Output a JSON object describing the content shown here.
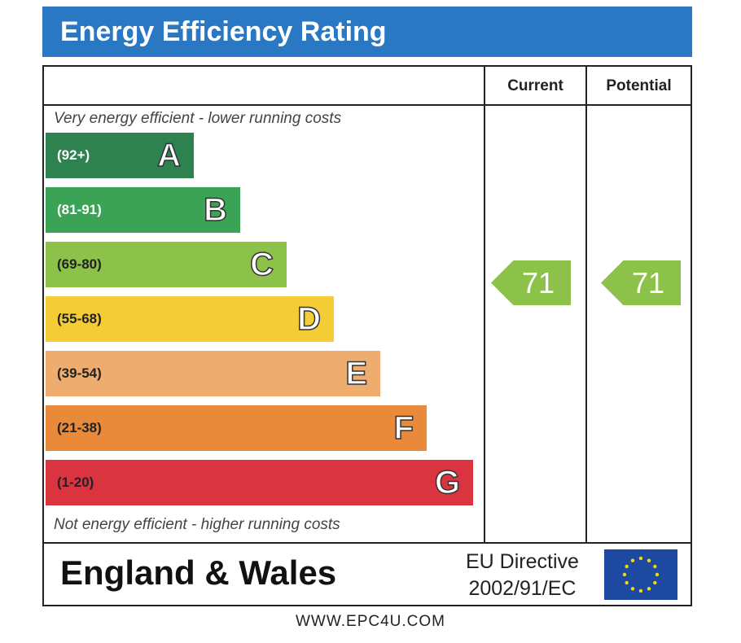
{
  "title": "Energy Efficiency Rating",
  "columns": {
    "current": "Current",
    "potential": "Potential"
  },
  "notes": {
    "top": "Very energy efficient - lower running costs",
    "bottom": "Not energy efficient - higher running costs"
  },
  "footer": {
    "country": "England & Wales",
    "directive_line1": "EU Directive",
    "directive_line2": "2002/91/EC"
  },
  "url": "WWW.EPC4U.COM",
  "colors": {
    "header": "#2a77c3",
    "arrow": "#8cc24a",
    "eu_flag": "#1e49a0"
  },
  "chart_data": {
    "type": "bar",
    "title": "Energy Efficiency Rating",
    "categories": [
      "A",
      "B",
      "C",
      "D",
      "E",
      "F",
      "G"
    ],
    "ranges": [
      "(92+)",
      "(81-91)",
      "(69-80)",
      "(55-68)",
      "(39-54)",
      "(21-38)",
      "(1-20)"
    ],
    "colors": [
      "#2e8250",
      "#3aa355",
      "#8cc24a",
      "#f4cc36",
      "#efac6f",
      "#e98a3a",
      "#d9343f"
    ],
    "range_text_colors": [
      "#ffffff",
      "#ffffff",
      "#222222",
      "#222222",
      "#222222",
      "#222222",
      "#222222"
    ],
    "current": 71,
    "potential": 71
  }
}
